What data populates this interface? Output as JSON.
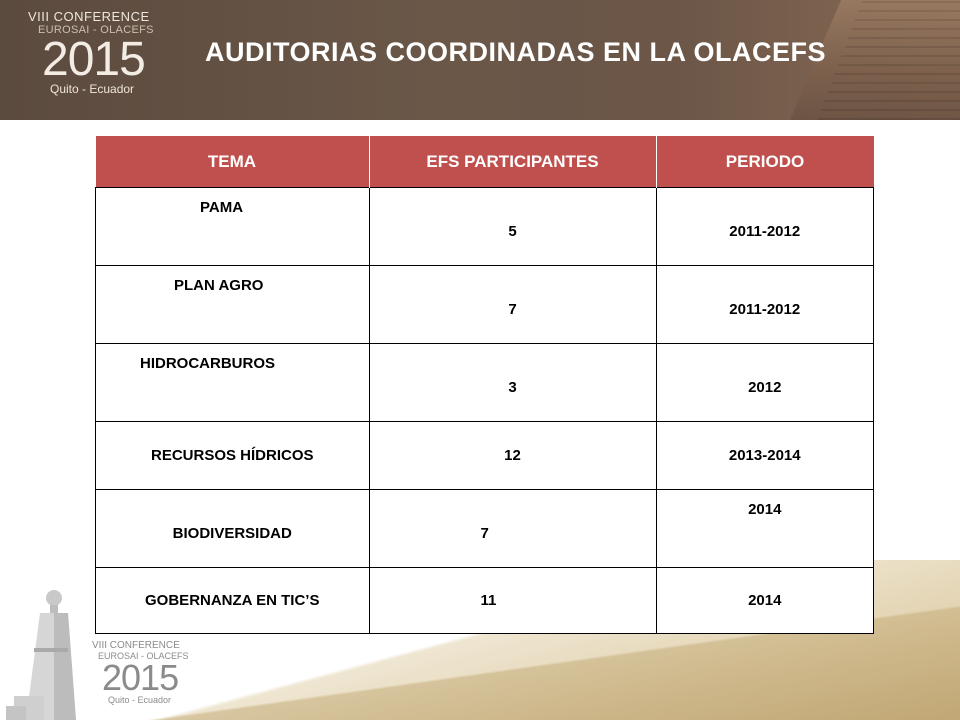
{
  "header": {
    "logo": {
      "line1": "VIII CONFERENCE",
      "line2": "EUROSAI - OLACEFS",
      "year": "2015",
      "city": "Quito - Ecuador"
    },
    "title": "AUDITORIAS  COORDINADAS  EN LA OLACEFS"
  },
  "table": {
    "headers": [
      "TEMA",
      "EFS PARTICIPANTES",
      "PERIODO"
    ],
    "rows": [
      {
        "tema": "PAMA",
        "efs": "5",
        "periodo": "2011-2012"
      },
      {
        "tema": "PLAN AGRO",
        "efs": "7",
        "periodo": "2011-2012"
      },
      {
        "tema": "HIDROCARBUROS",
        "efs": "3",
        "periodo": "2012"
      },
      {
        "tema": "RECURSOS HÍDRICOS",
        "efs": "12",
        "periodo": "2013-2014"
      },
      {
        "tema": "BIODIVERSIDAD",
        "efs": "7",
        "periodo": "2014"
      },
      {
        "tema": "GOBERNANZA EN TIC’S",
        "efs": "11",
        "periodo": "2014"
      }
    ]
  },
  "footer_logo": {
    "line1": "VIII CONFERENCE",
    "line2": "EUROSAI - OLACEFS",
    "year": "2015",
    "city": "Quito - Ecuador"
  },
  "colors": {
    "header_bg": "#5b4a3e",
    "table_header_bg": "#c0504d",
    "bottom_accent": "#d4c095"
  }
}
